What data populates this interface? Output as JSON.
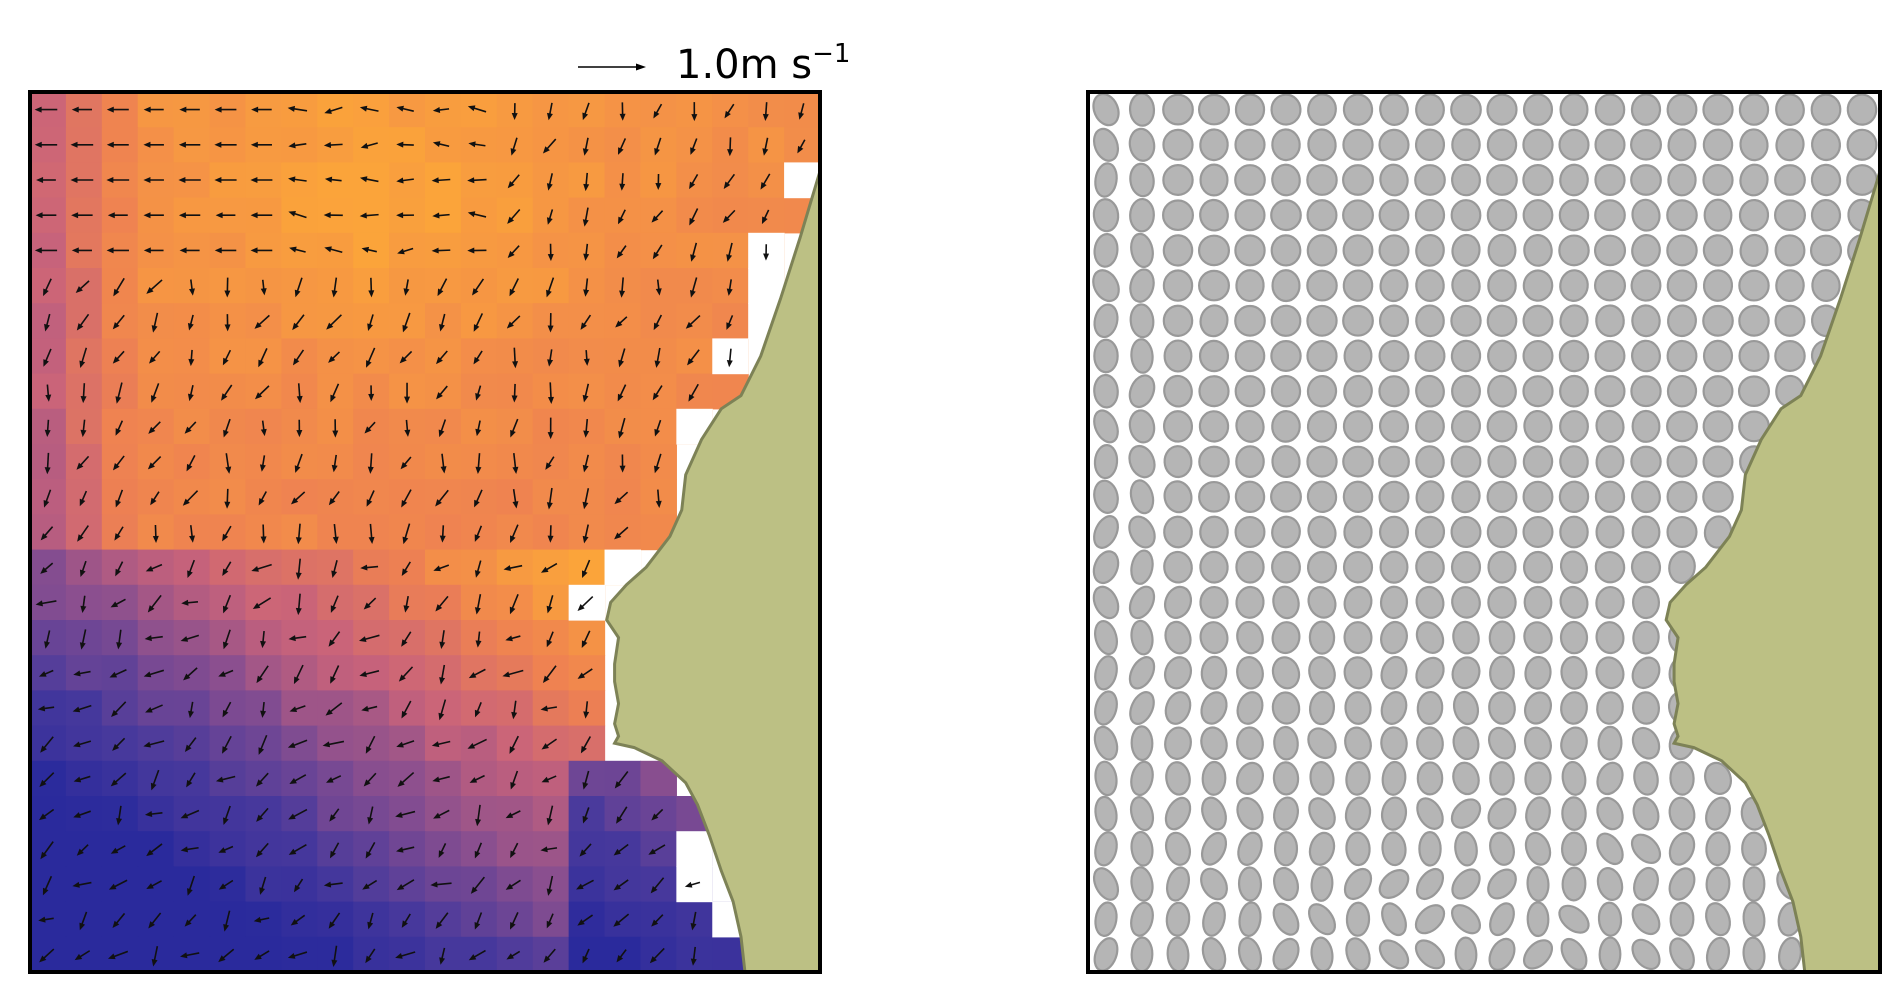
{
  "chart_data": [
    {
      "type": "heatmap",
      "panel": "left",
      "grid": {
        "cols": 22,
        "rows": 25
      },
      "colormap": [
        "#2a2a9c",
        "#4a3a9c",
        "#8a4f8f",
        "#c9637a",
        "#ee8152",
        "#fba43a"
      ],
      "vector_field": true,
      "reference_arrow": {
        "label": "1.0m s",
        "exponent": "−1",
        "magnitude": 1.0
      },
      "land_color": "#bcc084",
      "land_edge_color": "#7d8256",
      "axes": {
        "ticks": false,
        "grid": false
      }
    },
    {
      "type": "scatter",
      "panel": "right",
      "grid": {
        "cols": 22,
        "rows": 25
      },
      "marker": "ellipse",
      "marker_color": "#b5b5b5",
      "marker_edge_color": "#999999",
      "land_color": "#bcc084",
      "land_edge_color": "#7d8256",
      "axes": {
        "ticks": false,
        "grid": false
      }
    }
  ]
}
